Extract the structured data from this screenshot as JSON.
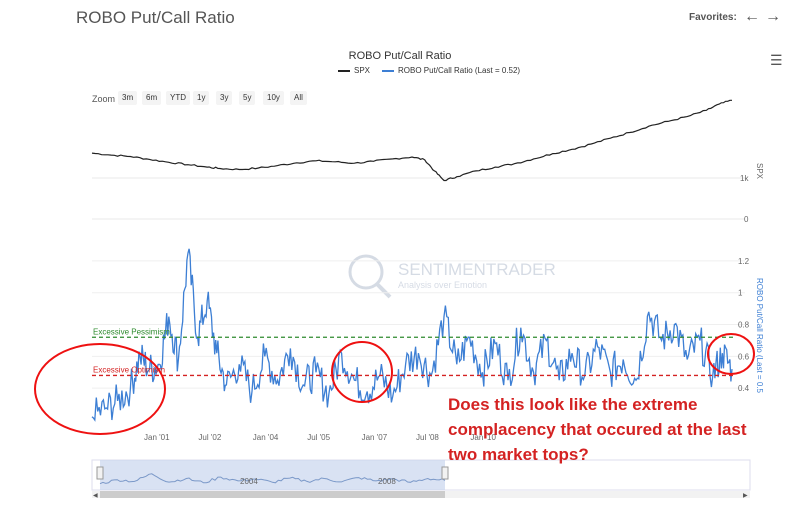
{
  "page": {
    "title": "ROBO Put/Call Ratio",
    "favorites_label": "Favorites:"
  },
  "chart_data": {
    "type": "line",
    "title": "ROBO Put/Call Ratio",
    "legend": [
      "SPX",
      "ROBO Put/Call Ratio (Last = 0.52)"
    ],
    "zoom_label": "Zoom",
    "zoom_buttons": [
      "3m",
      "6m",
      "YTD",
      "1y",
      "3y",
      "5y",
      "10y",
      "All"
    ],
    "x_ticks": [
      "Jan '01",
      "Jul '02",
      "Jan '04",
      "Jul '05",
      "Jan '07",
      "Jul '08",
      "Jan '10"
    ],
    "navigator_ticks": [
      "2004",
      "2008"
    ],
    "spx_axis": {
      "label": "SPX",
      "ticks": [
        "1k",
        "0"
      ]
    },
    "ratio_axis": {
      "label": "ROBO Put/Call Ratio (Last = 0.5",
      "ticks": [
        "1.2",
        "1",
        "0.8",
        "0.6",
        "0.4"
      ],
      "ylim": [
        0.2,
        1.3
      ]
    },
    "reference_lines": [
      {
        "label": "Excessive Pessimism",
        "value": 0.72,
        "color": "#2e8b2e"
      },
      {
        "label": "Excessive Optimism",
        "value": 0.48,
        "color": "#d42222"
      }
    ],
    "last_value": 0.52,
    "spx_series": [
      {
        "x": 0.0,
        "y": 1370
      },
      {
        "x": 0.03,
        "y": 1330
      },
      {
        "x": 0.06,
        "y": 1300
      },
      {
        "x": 0.09,
        "y": 1240
      },
      {
        "x": 0.12,
        "y": 1180
      },
      {
        "x": 0.15,
        "y": 1130
      },
      {
        "x": 0.18,
        "y": 1080
      },
      {
        "x": 0.2,
        "y": 1050
      },
      {
        "x": 0.23,
        "y": 1030
      },
      {
        "x": 0.26,
        "y": 1060
      },
      {
        "x": 0.29,
        "y": 1110
      },
      {
        "x": 0.32,
        "y": 1170
      },
      {
        "x": 0.35,
        "y": 1210
      },
      {
        "x": 0.38,
        "y": 1190
      },
      {
        "x": 0.41,
        "y": 1160
      },
      {
        "x": 0.44,
        "y": 1200
      },
      {
        "x": 0.47,
        "y": 1250
      },
      {
        "x": 0.5,
        "y": 1290
      },
      {
        "x": 0.52,
        "y": 1230
      },
      {
        "x": 0.535,
        "y": 1000
      },
      {
        "x": 0.55,
        "y": 800
      },
      {
        "x": 0.57,
        "y": 880
      },
      {
        "x": 0.6,
        "y": 1000
      },
      {
        "x": 0.63,
        "y": 1080
      },
      {
        "x": 0.66,
        "y": 1150
      },
      {
        "x": 0.69,
        "y": 1250
      },
      {
        "x": 0.72,
        "y": 1360
      },
      {
        "x": 0.75,
        "y": 1450
      },
      {
        "x": 0.78,
        "y": 1560
      },
      {
        "x": 0.81,
        "y": 1680
      },
      {
        "x": 0.84,
        "y": 1800
      },
      {
        "x": 0.87,
        "y": 1930
      },
      {
        "x": 0.9,
        "y": 2030
      },
      {
        "x": 0.93,
        "y": 2130
      },
      {
        "x": 0.96,
        "y": 2260
      },
      {
        "x": 0.98,
        "y": 2390
      },
      {
        "x": 1.0,
        "y": 2470
      }
    ],
    "ratio_series": [
      {
        "x": 0.0,
        "y": 0.22
      },
      {
        "x": 0.02,
        "y": 0.27
      },
      {
        "x": 0.04,
        "y": 0.32
      },
      {
        "x": 0.06,
        "y": 0.4
      },
      {
        "x": 0.075,
        "y": 0.6
      },
      {
        "x": 0.09,
        "y": 0.52
      },
      {
        "x": 0.105,
        "y": 0.55
      },
      {
        "x": 0.12,
        "y": 0.85
      },
      {
        "x": 0.135,
        "y": 0.58
      },
      {
        "x": 0.15,
        "y": 1.25
      },
      {
        "x": 0.165,
        "y": 0.72
      },
      {
        "x": 0.18,
        "y": 0.95
      },
      {
        "x": 0.195,
        "y": 0.62
      },
      {
        "x": 0.21,
        "y": 0.42
      },
      {
        "x": 0.23,
        "y": 0.55
      },
      {
        "x": 0.25,
        "y": 0.38
      },
      {
        "x": 0.27,
        "y": 0.6
      },
      {
        "x": 0.29,
        "y": 0.45
      },
      {
        "x": 0.31,
        "y": 0.65
      },
      {
        "x": 0.33,
        "y": 0.42
      },
      {
        "x": 0.35,
        "y": 0.5
      },
      {
        "x": 0.37,
        "y": 0.36
      },
      {
        "x": 0.39,
        "y": 0.62
      },
      {
        "x": 0.41,
        "y": 0.45
      },
      {
        "x": 0.43,
        "y": 0.38
      },
      {
        "x": 0.45,
        "y": 0.48
      },
      {
        "x": 0.47,
        "y": 0.35
      },
      {
        "x": 0.49,
        "y": 0.55
      },
      {
        "x": 0.51,
        "y": 0.62
      },
      {
        "x": 0.53,
        "y": 0.48
      },
      {
        "x": 0.55,
        "y": 0.85
      },
      {
        "x": 0.57,
        "y": 0.55
      },
      {
        "x": 0.59,
        "y": 0.72
      },
      {
        "x": 0.61,
        "y": 0.5
      },
      {
        "x": 0.63,
        "y": 0.68
      },
      {
        "x": 0.65,
        "y": 0.45
      },
      {
        "x": 0.67,
        "y": 0.78
      },
      {
        "x": 0.69,
        "y": 0.5
      },
      {
        "x": 0.71,
        "y": 0.7
      },
      {
        "x": 0.73,
        "y": 0.45
      },
      {
        "x": 0.75,
        "y": 0.62
      },
      {
        "x": 0.77,
        "y": 0.48
      },
      {
        "x": 0.79,
        "y": 0.66
      },
      {
        "x": 0.81,
        "y": 0.5
      },
      {
        "x": 0.83,
        "y": 0.58
      },
      {
        "x": 0.85,
        "y": 0.45
      },
      {
        "x": 0.87,
        "y": 0.88
      },
      {
        "x": 0.89,
        "y": 0.7
      },
      {
        "x": 0.91,
        "y": 0.8
      },
      {
        "x": 0.93,
        "y": 0.58
      },
      {
        "x": 0.95,
        "y": 0.7
      },
      {
        "x": 0.97,
        "y": 0.48
      },
      {
        "x": 0.985,
        "y": 0.62
      },
      {
        "x": 1.0,
        "y": 0.52
      }
    ],
    "navigator_series": [
      {
        "x": 0.0,
        "y": 0.38
      },
      {
        "x": 0.05,
        "y": 0.55
      },
      {
        "x": 0.1,
        "y": 0.48
      },
      {
        "x": 0.15,
        "y": 0.8
      },
      {
        "x": 0.2,
        "y": 0.45
      },
      {
        "x": 0.25,
        "y": 0.6
      },
      {
        "x": 0.3,
        "y": 0.42
      },
      {
        "x": 0.35,
        "y": 0.66
      },
      {
        "x": 0.4,
        "y": 0.5
      },
      {
        "x": 0.45,
        "y": 0.58
      },
      {
        "x": 0.5,
        "y": 0.44
      },
      {
        "x": 0.55,
        "y": 0.62
      },
      {
        "x": 0.6,
        "y": 0.48
      },
      {
        "x": 0.65,
        "y": 0.6
      },
      {
        "x": 0.7,
        "y": 0.46
      },
      {
        "x": 0.75,
        "y": 0.64
      },
      {
        "x": 0.8,
        "y": 0.5
      },
      {
        "x": 0.85,
        "y": 0.58
      },
      {
        "x": 0.9,
        "y": 0.44
      },
      {
        "x": 0.95,
        "y": 0.6
      },
      {
        "x": 1.0,
        "y": 0.52
      }
    ],
    "colors": {
      "spx": "#222222",
      "ratio": "#3d7fd4",
      "navigator_fill": "#c9d6ee"
    }
  },
  "annotation": {
    "text": "Does this look like the extreme complacency that occured at the last two market tops?",
    "color": "#d42222"
  },
  "watermark": {
    "name": "SENTIMENTRADER",
    "tagline": "Analysis over Emotion"
  }
}
